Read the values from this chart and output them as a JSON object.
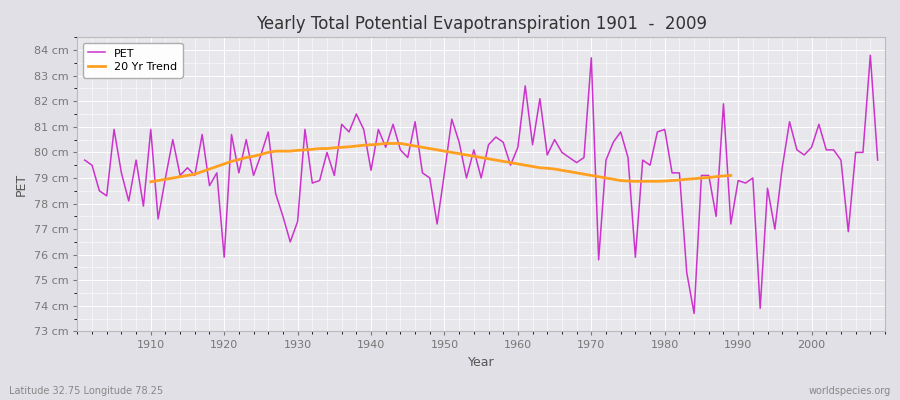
{
  "title": "Yearly Total Potential Evapotranspiration 1901  -  2009",
  "xlabel": "Year",
  "ylabel": "PET",
  "lat_lon_label": "Latitude 32.75 Longitude 78.25",
  "watermark": "worldspecies.org",
  "pet_color": "#CC33CC",
  "trend_color": "#FFA020",
  "bg_color": "#E8E8EC",
  "fig_color": "#E0E0E6",
  "years": [
    1901,
    1902,
    1903,
    1904,
    1905,
    1906,
    1907,
    1908,
    1909,
    1910,
    1911,
    1912,
    1913,
    1914,
    1915,
    1916,
    1917,
    1918,
    1919,
    1920,
    1921,
    1922,
    1923,
    1924,
    1925,
    1926,
    1927,
    1928,
    1929,
    1930,
    1931,
    1932,
    1933,
    1934,
    1935,
    1936,
    1937,
    1938,
    1939,
    1940,
    1941,
    1942,
    1943,
    1944,
    1945,
    1946,
    1947,
    1948,
    1949,
    1950,
    1951,
    1952,
    1953,
    1954,
    1955,
    1956,
    1957,
    1958,
    1959,
    1960,
    1961,
    1962,
    1963,
    1964,
    1965,
    1966,
    1967,
    1968,
    1969,
    1970,
    1971,
    1972,
    1973,
    1974,
    1975,
    1976,
    1977,
    1978,
    1979,
    1980,
    1981,
    1982,
    1983,
    1984,
    1985,
    1986,
    1987,
    1988,
    1989,
    1990,
    1991,
    1992,
    1993,
    1994,
    1995,
    1996,
    1997,
    1998,
    1999,
    2000,
    2001,
    2002,
    2003,
    2004,
    2005,
    2006,
    2007,
    2008,
    2009
  ],
  "pet_values": [
    79.7,
    79.5,
    78.5,
    78.3,
    80.9,
    79.2,
    78.1,
    79.7,
    77.9,
    80.9,
    77.4,
    79.0,
    80.5,
    79.1,
    79.4,
    79.1,
    80.7,
    78.7,
    79.2,
    75.9,
    80.7,
    79.2,
    80.5,
    79.1,
    79.9,
    80.8,
    78.4,
    77.5,
    76.5,
    77.3,
    80.9,
    78.8,
    78.9,
    80.0,
    79.1,
    81.1,
    80.8,
    81.5,
    80.9,
    79.3,
    80.9,
    80.2,
    81.1,
    80.1,
    79.8,
    81.2,
    79.2,
    79.0,
    77.2,
    79.2,
    81.3,
    80.4,
    79.0,
    80.1,
    79.0,
    80.3,
    80.6,
    80.4,
    79.5,
    80.2,
    82.6,
    80.3,
    82.1,
    79.9,
    80.5,
    80.0,
    79.8,
    79.6,
    79.8,
    83.7,
    75.8,
    79.7,
    80.4,
    80.8,
    79.8,
    75.9,
    79.7,
    79.5,
    80.8,
    80.9,
    79.2,
    79.2,
    75.3,
    73.7,
    79.1,
    79.1,
    77.5,
    81.9,
    77.2,
    78.9,
    78.8,
    79.0,
    73.9,
    78.6,
    77.0,
    79.4,
    81.2,
    80.1,
    79.9,
    80.2,
    81.1,
    80.1,
    80.1,
    79.7,
    76.9,
    80.0,
    80.0,
    83.8,
    79.7
  ],
  "trend_start_year": 1910,
  "trend_values": [
    78.85,
    78.9,
    78.95,
    79.0,
    79.05,
    79.1,
    79.15,
    79.25,
    79.35,
    79.45,
    79.55,
    79.65,
    79.72,
    79.8,
    79.85,
    79.92,
    80.0,
    80.05,
    80.05,
    80.05,
    80.08,
    80.1,
    80.12,
    80.15,
    80.15,
    80.18,
    80.2,
    80.22,
    80.25,
    80.28,
    80.3,
    80.32,
    80.35,
    80.35,
    80.35,
    80.3,
    80.25,
    80.2,
    80.15,
    80.1,
    80.05,
    80.0,
    79.95,
    79.9,
    79.85,
    79.8,
    79.75,
    79.7,
    79.65,
    79.6,
    79.55,
    79.5,
    79.45,
    79.4,
    79.38,
    79.35,
    79.3,
    79.25,
    79.2,
    79.15,
    79.1,
    79.05,
    79.0,
    78.95,
    78.9,
    78.88,
    78.87,
    78.87,
    78.87,
    78.87,
    78.88,
    78.9,
    78.92,
    78.95,
    78.97,
    79.0,
    79.02,
    79.05,
    79.08,
    79.1
  ],
  "ylim": [
    73.0,
    84.5
  ],
  "yticks": [
    73,
    74,
    75,
    76,
    77,
    78,
    79,
    80,
    81,
    82,
    83,
    84
  ],
  "xlim": [
    1900,
    2010
  ],
  "xticks": [
    1910,
    1920,
    1930,
    1940,
    1950,
    1960,
    1970,
    1980,
    1990,
    2000
  ]
}
